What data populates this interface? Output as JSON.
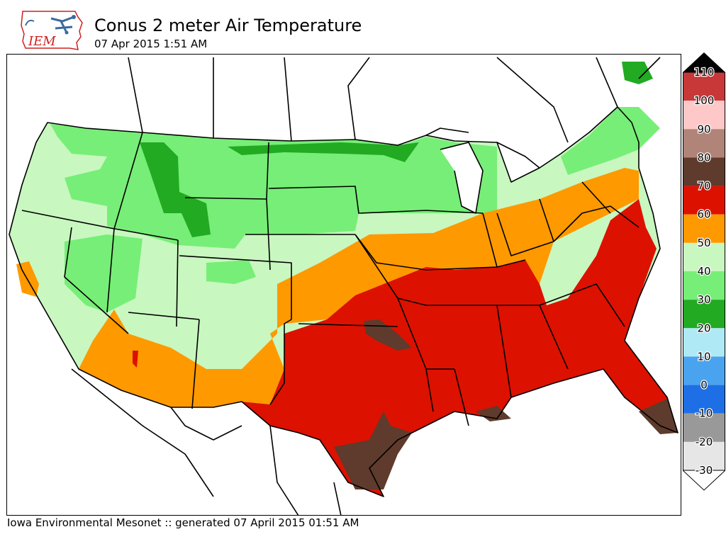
{
  "header": {
    "logo_text": "IEM",
    "title": "Conus 2 meter Air Temperature",
    "subtitle": "07 Apr 2015 1:51 AM"
  },
  "colors": {
    "band_neg30_neg20": "#e6e6e6",
    "band_neg20_neg10": "#999999",
    "band_neg10_0": "#1e6fe6",
    "band_0_10": "#4aa3ee",
    "band_10_20": "#aee9f5",
    "band_20_30": "#22aa22",
    "band_30_40": "#77ee77",
    "band_40_50": "#c8f7c0",
    "band_50_60": "#ff9900",
    "band_60_70": "#dd1100",
    "band_70_80": "#5e3b2c",
    "band_80_90": "#b08478",
    "band_90_100": "#ffc8c8",
    "band_100_110": "#c83838",
    "above_max": "#000000",
    "below_min": "#ffffff"
  },
  "legend": {
    "labels": [
      "110",
      "100",
      "90",
      "80",
      "70",
      "60",
      "50",
      "40",
      "30",
      "20",
      "10",
      "0",
      "-10",
      "-20",
      "-30"
    ],
    "bands": [
      {
        "range": [
          100,
          110
        ],
        "color": "#c83838"
      },
      {
        "range": [
          90,
          100
        ],
        "color": "#ffc8c8"
      },
      {
        "range": [
          80,
          90
        ],
        "color": "#b08478"
      },
      {
        "range": [
          70,
          80
        ],
        "color": "#5e3b2c"
      },
      {
        "range": [
          60,
          70
        ],
        "color": "#dd1100"
      },
      {
        "range": [
          50,
          60
        ],
        "color": "#ff9900"
      },
      {
        "range": [
          40,
          50
        ],
        "color": "#c8f7c0"
      },
      {
        "range": [
          30,
          40
        ],
        "color": "#77ee77"
      },
      {
        "range": [
          20,
          30
        ],
        "color": "#22aa22"
      },
      {
        "range": [
          10,
          20
        ],
        "color": "#aee9f5"
      },
      {
        "range": [
          0,
          10
        ],
        "color": "#4aa3ee"
      },
      {
        "range": [
          -10,
          0
        ],
        "color": "#1e6fe6"
      },
      {
        "range": [
          -20,
          -10
        ],
        "color": "#999999"
      },
      {
        "range": [
          -30,
          -20
        ],
        "color": "#e6e6e6"
      }
    ]
  },
  "footer": {
    "text": "Iowa Environmental Mesonet :: generated 07 April 2015 01:51 AM"
  }
}
